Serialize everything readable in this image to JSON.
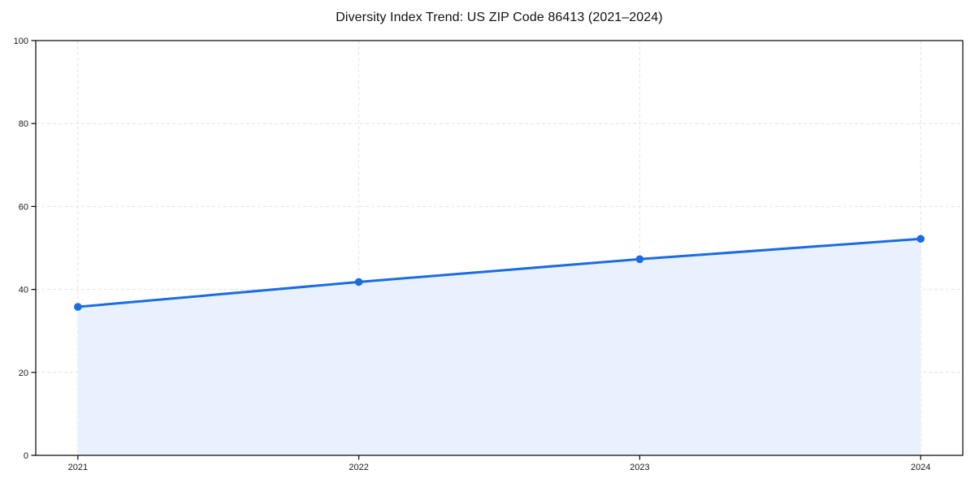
{
  "figure": {
    "background_color": "#ffffff"
  },
  "chart_data": {
    "type": "area",
    "title": "Diversity Index Trend: US ZIP Code 86413 (2021–2024)",
    "x": [
      2021,
      2022,
      2023,
      2024
    ],
    "xticks": [
      "2021",
      "2022",
      "2023",
      "2024"
    ],
    "series": [
      {
        "name": "Diversity Index",
        "values": [
          35.8,
          41.8,
          47.3,
          52.2
        ]
      }
    ],
    "xlabel": "",
    "ylabel": "",
    "ylim": [
      0,
      100
    ],
    "yticks": [
      0,
      20,
      40,
      60,
      80,
      100
    ],
    "grid": true,
    "grid_style": "dashed",
    "legend": "none",
    "line_color": "#1b6ce1",
    "marker_color": "#1b6ce1",
    "fill_color": "#e8f1fd",
    "grid_color": "#e3e3e3",
    "axis_color": "#000000",
    "tick_label_color": "#1a1a1a",
    "title_color": "#111111"
  }
}
